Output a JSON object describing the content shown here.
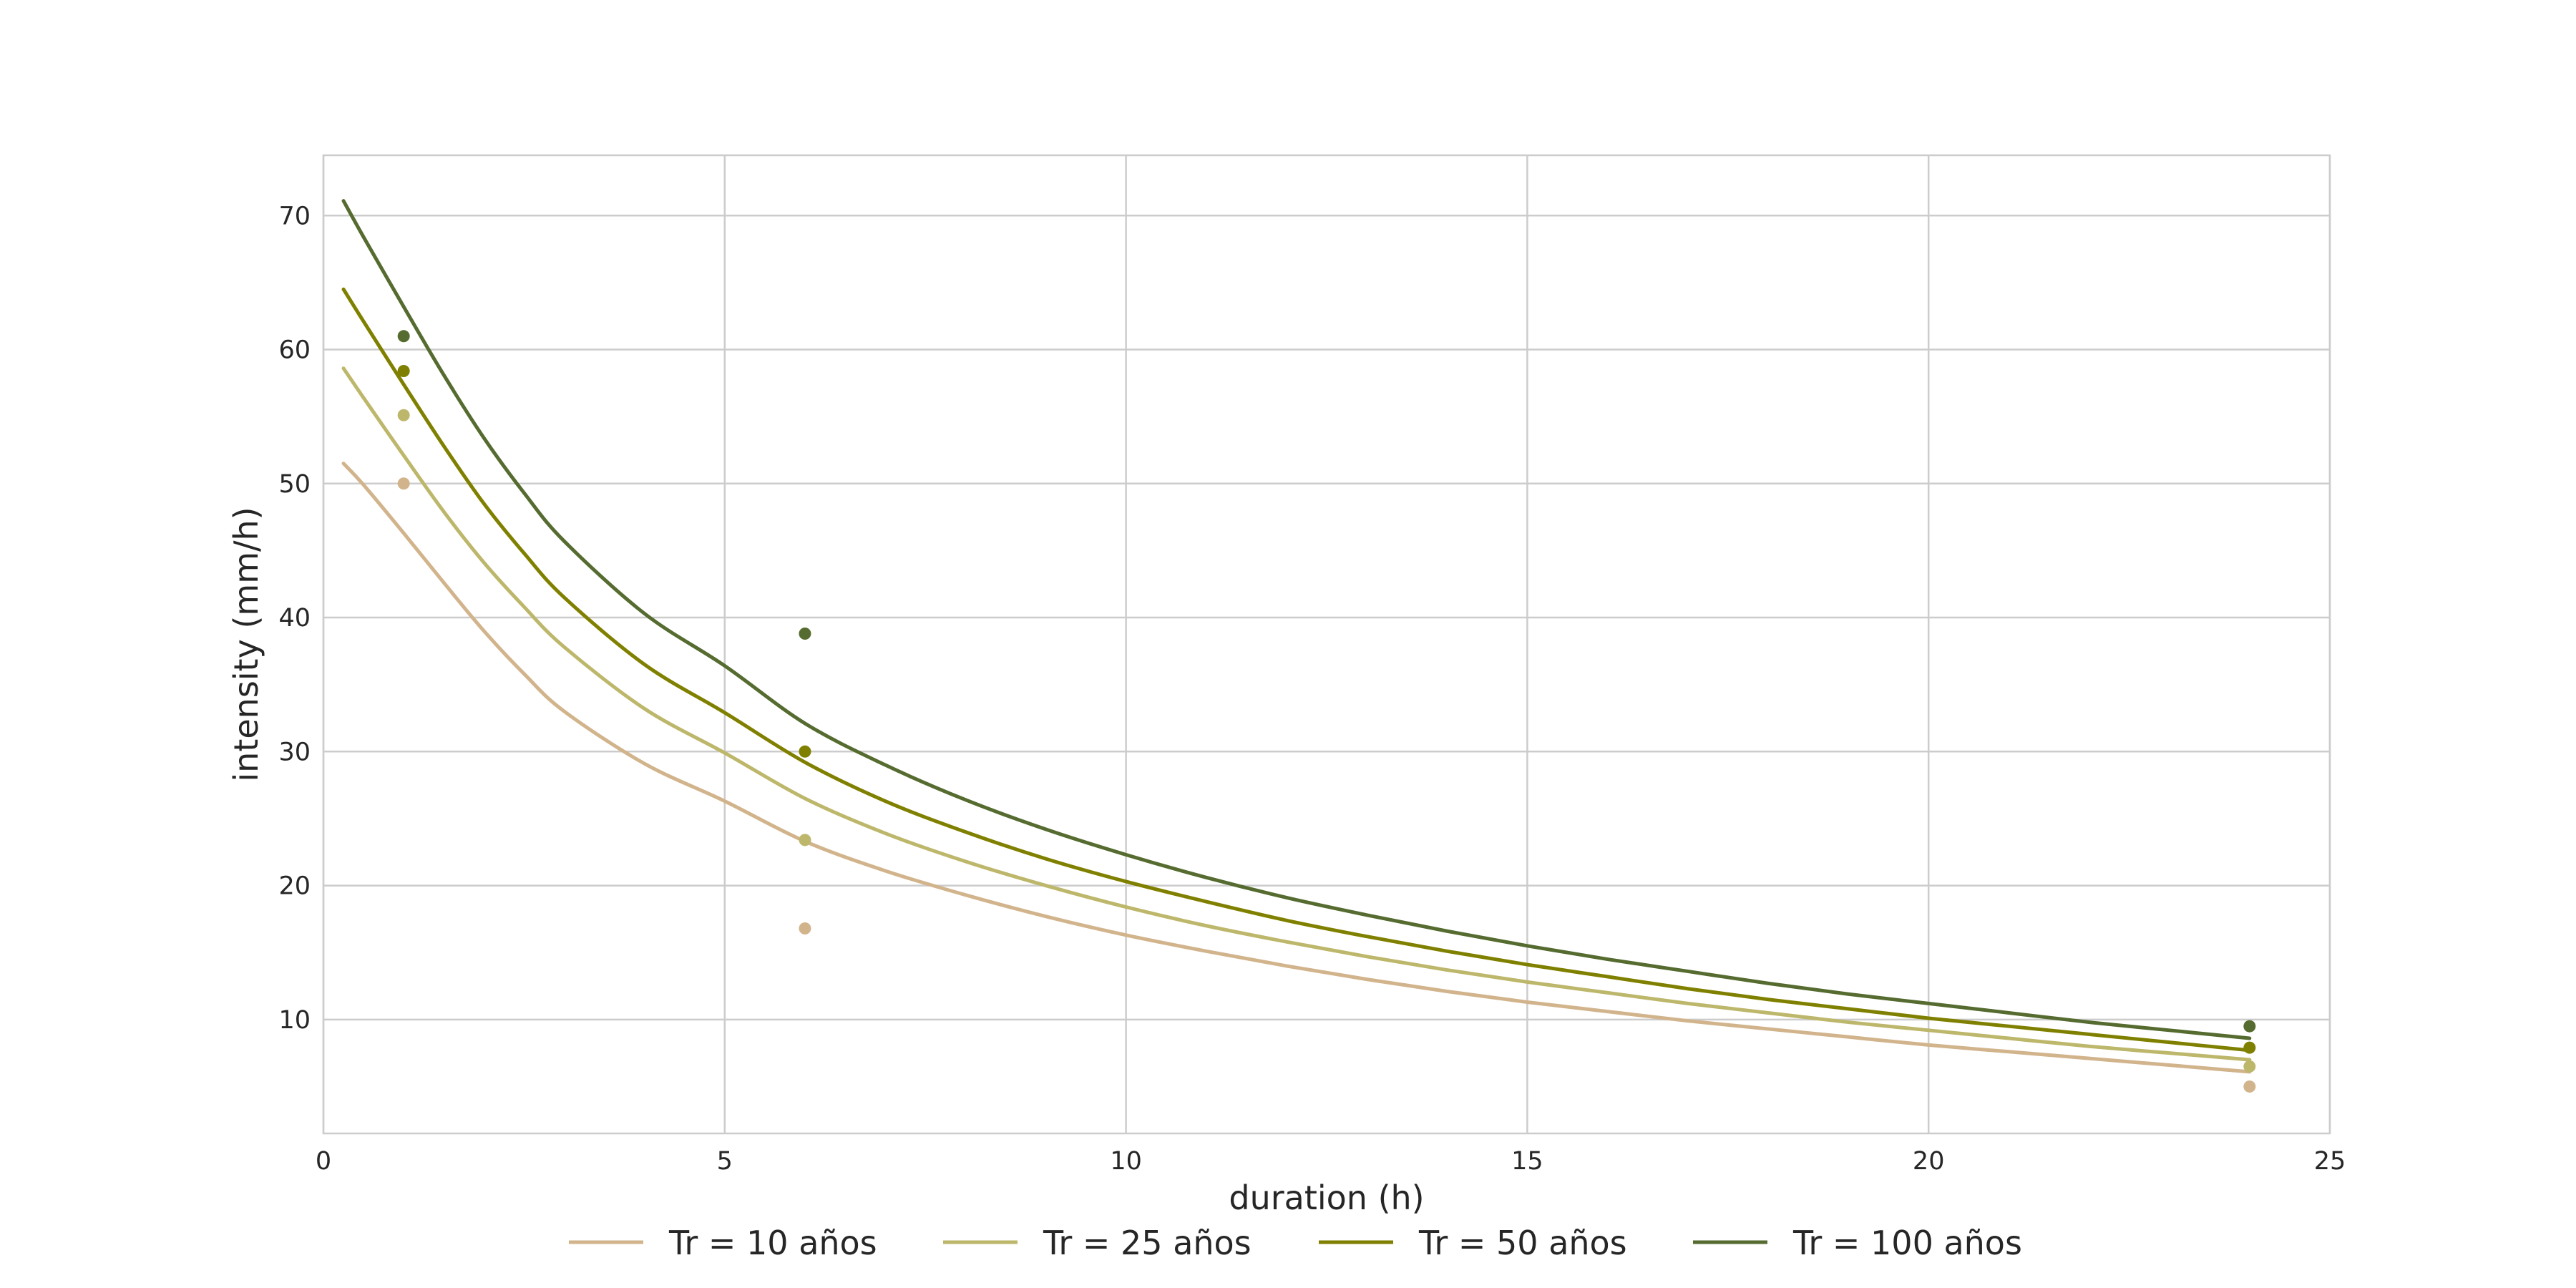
{
  "chart_data": {
    "type": "line",
    "title": "",
    "xlabel": "duration (h)",
    "ylabel": "intensity (mm/h)",
    "xlim": [
      0,
      25
    ],
    "ylim": [
      1.5,
      74.5
    ],
    "xticks": [
      0,
      5,
      10,
      15,
      20,
      25
    ],
    "yticks": [
      10,
      20,
      30,
      40,
      50,
      60,
      70
    ],
    "grid": true,
    "legend_position": "bottom",
    "series": [
      {
        "name": "Tr = 10 años",
        "color": "#d2b48c",
        "curve": {
          "x": [
            0.25,
            0.5,
            1,
            1.5,
            2,
            2.5,
            3,
            4,
            5,
            6,
            7,
            8,
            9,
            10,
            11,
            12,
            13,
            14,
            15,
            16,
            17,
            18,
            19,
            20,
            21,
            22,
            23,
            24
          ],
          "y": [
            51.5,
            49.9,
            46.3,
            42.6,
            39.0,
            35.8,
            33.0,
            29.1,
            26.3,
            23.3,
            21.1,
            19.3,
            17.7,
            16.3,
            15.1,
            14.0,
            13.0,
            12.1,
            11.3,
            10.6,
            9.9,
            9.3,
            8.7,
            8.1,
            7.6,
            7.1,
            6.6,
            6.1
          ]
        },
        "observed": {
          "x": [
            1,
            6,
            24
          ],
          "y": [
            50.0,
            16.8,
            5.0
          ]
        }
      },
      {
        "name": "Tr = 25 años",
        "color": "#bdb76b",
        "curve": {
          "x": [
            0.25,
            0.5,
            1,
            1.5,
            2,
            2.5,
            3,
            4,
            5,
            6,
            7,
            8,
            9,
            10,
            11,
            12,
            13,
            14,
            15,
            16,
            17,
            18,
            19,
            20,
            21,
            22,
            23,
            24
          ],
          "y": [
            58.6,
            56.4,
            52.1,
            47.9,
            44.1,
            40.8,
            37.8,
            33.2,
            29.9,
            26.5,
            23.9,
            21.8,
            20.0,
            18.4,
            17.0,
            15.8,
            14.7,
            13.7,
            12.8,
            12.0,
            11.2,
            10.5,
            9.8,
            9.2,
            8.6,
            8.0,
            7.5,
            7.0
          ]
        },
        "observed": {
          "x": [
            1,
            6,
            24
          ],
          "y": [
            55.1,
            23.4,
            6.5
          ]
        }
      },
      {
        "name": "Tr = 50 años",
        "color": "#808000",
        "curve": {
          "x": [
            0.25,
            0.5,
            1,
            1.5,
            2,
            2.5,
            3,
            4,
            5,
            6,
            7,
            8,
            9,
            10,
            11,
            12,
            13,
            14,
            15,
            16,
            17,
            18,
            19,
            20,
            21,
            22,
            23,
            24
          ],
          "y": [
            64.5,
            62.1,
            57.4,
            52.8,
            48.5,
            44.8,
            41.5,
            36.5,
            32.9,
            29.2,
            26.3,
            24.0,
            22.0,
            20.3,
            18.8,
            17.4,
            16.2,
            15.1,
            14.1,
            13.2,
            12.3,
            11.5,
            10.8,
            10.1,
            9.5,
            8.9,
            8.3,
            7.7
          ]
        },
        "observed": {
          "x": [
            1,
            6,
            24
          ],
          "y": [
            58.4,
            30.0,
            7.9
          ]
        }
      },
      {
        "name": "Tr = 100 años",
        "color": "#556b2f",
        "curve": {
          "x": [
            0.25,
            0.5,
            1,
            1.5,
            2,
            2.5,
            3,
            4,
            5,
            6,
            7,
            8,
            9,
            10,
            11,
            12,
            13,
            14,
            15,
            16,
            17,
            18,
            19,
            20,
            21,
            22,
            23,
            24
          ],
          "y": [
            71.1,
            68.4,
            63.2,
            58.1,
            53.4,
            49.3,
            45.7,
            40.3,
            36.4,
            32.1,
            29.0,
            26.4,
            24.2,
            22.3,
            20.6,
            19.1,
            17.8,
            16.6,
            15.5,
            14.5,
            13.6,
            12.7,
            11.9,
            11.2,
            10.5,
            9.8,
            9.2,
            8.6
          ]
        },
        "observed": {
          "x": [
            1,
            6,
            24
          ],
          "y": [
            61.0,
            38.8,
            9.5
          ]
        }
      }
    ]
  }
}
